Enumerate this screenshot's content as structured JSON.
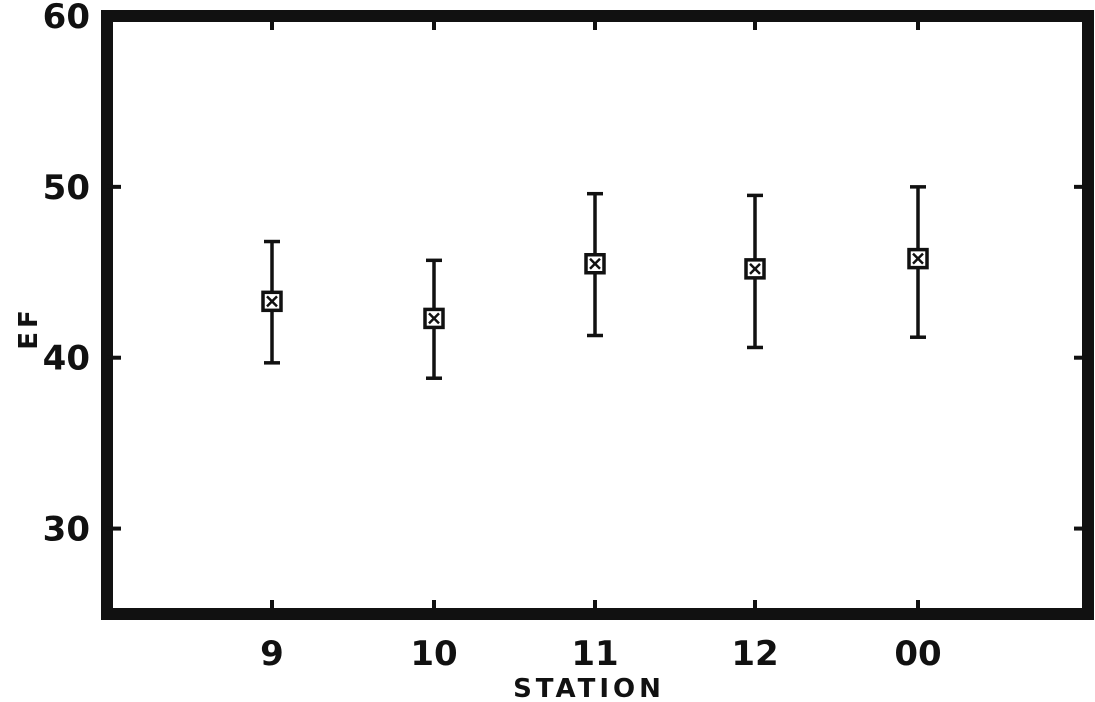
{
  "chart_data": {
    "type": "scatter",
    "title": "",
    "xlabel": "STATION",
    "ylabel": "EF",
    "categories": [
      "9",
      "10",
      "11",
      "12",
      "00"
    ],
    "series": [
      {
        "values": [
          43.3,
          42.3,
          45.5,
          45.2,
          45.8
        ],
        "error_low": [
          39.7,
          38.8,
          41.3,
          40.6,
          41.2
        ],
        "error_high": [
          46.8,
          45.7,
          49.6,
          49.5,
          50.0
        ]
      }
    ],
    "ylim": [
      25,
      60
    ],
    "yticks": [
      30,
      40,
      50,
      60
    ],
    "grid": false,
    "legend": "none",
    "marker": "boxed-x",
    "colors": {
      "ink": "#111111",
      "background": "#ffffff"
    }
  }
}
